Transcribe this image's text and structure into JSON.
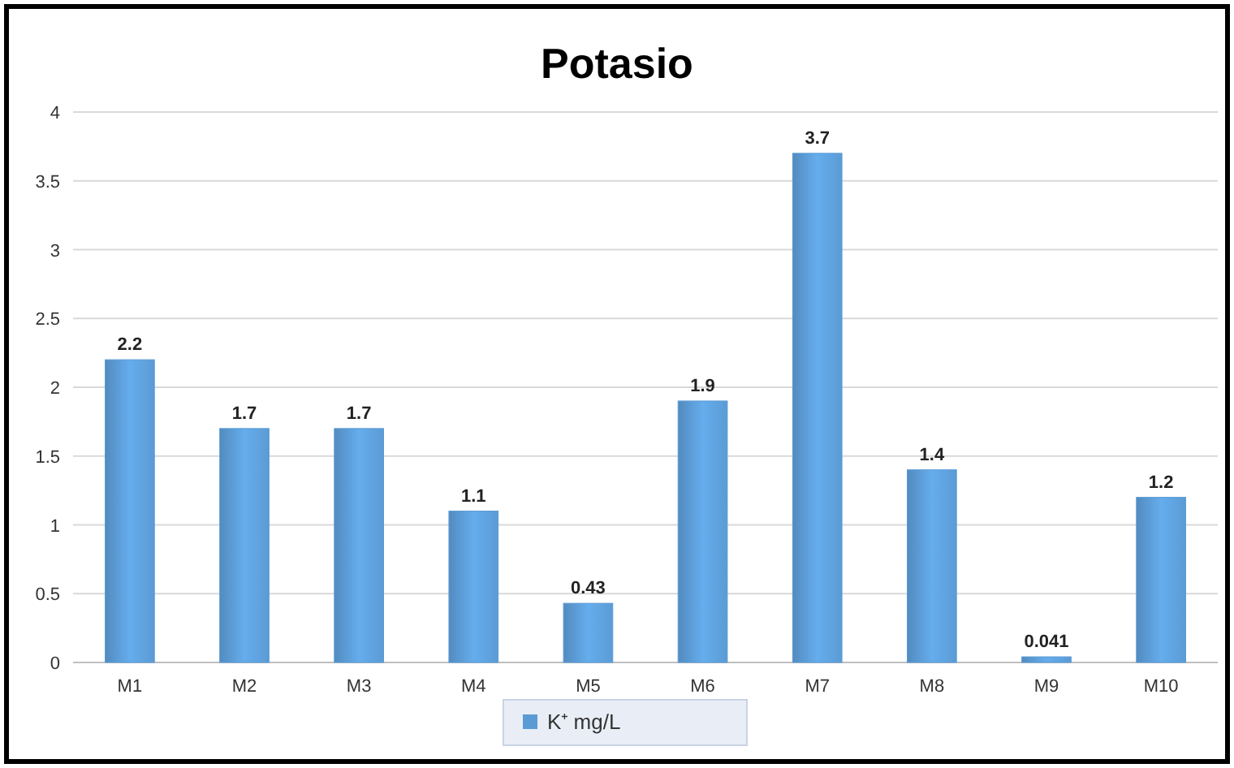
{
  "chart_data": {
    "type": "bar",
    "title": "Potasio",
    "categories": [
      "M1",
      "M2",
      "M3",
      "M4",
      "M5",
      "M6",
      "M7",
      "M8",
      "M9",
      "M10"
    ],
    "series": [
      {
        "name": "K⁺ mg/L",
        "color": "#5b9bd5",
        "values": [
          2.2,
          1.7,
          1.7,
          1.1,
          0.43,
          1.9,
          3.7,
          1.4,
          0.041,
          1.2
        ]
      }
    ],
    "ylim": [
      0,
      4
    ],
    "yticks": [
      0,
      0.5,
      1,
      1.5,
      2,
      2.5,
      3,
      3.5,
      4
    ],
    "grid": "y",
    "legend": "bottom",
    "data_labels": true
  }
}
